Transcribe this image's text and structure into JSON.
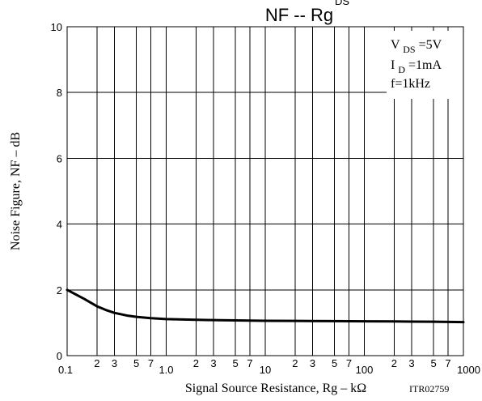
{
  "chart_data": {
    "type": "line",
    "title": "NF -- Rg",
    "title_partial_subscript": "DS",
    "xlabel": "Signal Source Resistance, Rg  –  kΩ",
    "ylabel": "Noise Figure, NF  –  dB",
    "code": "ITR02759",
    "x_scale": "log",
    "xlim": [
      0.1,
      1000
    ],
    "ylim": [
      0,
      10
    ],
    "grid": true,
    "y_ticks": [
      0,
      2,
      4,
      6,
      8,
      10
    ],
    "y_tick_labels": [
      "0",
      "2",
      "4",
      "6",
      "8",
      "10"
    ],
    "x_major_ticks": [
      0.1,
      1,
      10,
      100,
      1000
    ],
    "x_major_tick_labels": [
      "0.1",
      "1.0",
      "10",
      "100",
      "1000"
    ],
    "x_minor_ticks": [
      0.2,
      0.3,
      0.5,
      0.7,
      2,
      3,
      5,
      7,
      20,
      30,
      50,
      70,
      200,
      300,
      500,
      700
    ],
    "x_minor_tick_labels": [
      "2",
      "3",
      "5",
      "7",
      "2",
      "3",
      "5",
      "7",
      "2",
      "3",
      "5",
      "7",
      "2",
      "3",
      "5",
      "7"
    ],
    "conditions": [
      {
        "main": "V",
        "sub": "DS",
        "rest": "=5V"
      },
      {
        "main": "I",
        "sub": "D",
        "rest": "=1mA"
      },
      {
        "main": "f=1kHz",
        "sub": "",
        "rest": ""
      }
    ],
    "legend_placement": "top-right",
    "series": [
      {
        "x": [
          0.1,
          0.15,
          0.2,
          0.25,
          0.3,
          0.4,
          0.5,
          0.7,
          1,
          2,
          3,
          5,
          10,
          20,
          50,
          100,
          200,
          500,
          1000
        ],
        "y": [
          2.0,
          1.72,
          1.5,
          1.38,
          1.3,
          1.22,
          1.18,
          1.14,
          1.11,
          1.09,
          1.08,
          1.07,
          1.06,
          1.055,
          1.05,
          1.045,
          1.04,
          1.03,
          1.02
        ]
      }
    ]
  }
}
